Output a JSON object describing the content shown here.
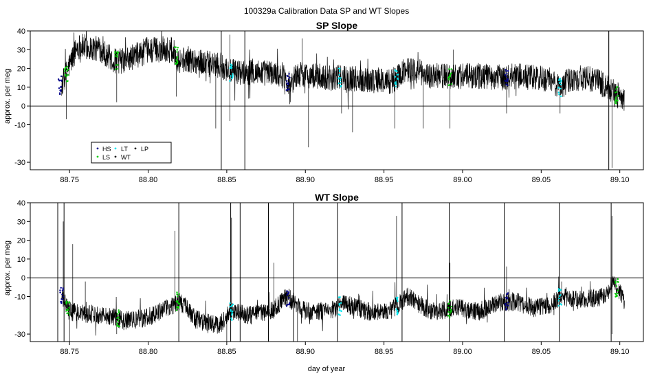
{
  "figure": {
    "title": "100329a   Calibration Data SP and WT Slopes",
    "xlabel": "day of year"
  },
  "colors": {
    "trace": "#000000",
    "HS": "#00008b",
    "LS": "#00cd00",
    "LT": "#00e5ee",
    "WT": "#000000",
    "LP": "#000000"
  },
  "chart_data": [
    {
      "type": "line",
      "title": "SP Slope",
      "ylabel": "approx. per meg",
      "xlim": [
        88.725,
        89.115
      ],
      "ylim": [
        -34,
        40
      ],
      "x_ticks": [
        88.75,
        88.8,
        88.85,
        88.9,
        88.95,
        89.0,
        89.05,
        89.1
      ],
      "x_tick_labels": [
        "88.75",
        "88.80",
        "88.85",
        "88.90",
        "88.95",
        "89.00",
        "89.05",
        "89.10"
      ],
      "y_ticks": [
        -30,
        -10,
        0,
        10,
        20,
        30,
        40
      ],
      "y_tick_labels": [
        "-30",
        "-10",
        "0",
        "10",
        "20",
        "30",
        "40"
      ],
      "reference_line": 0,
      "legend": {
        "position": "bottom-left",
        "entries": [
          {
            "label": "HS",
            "color": "#00008b"
          },
          {
            "label": "LT",
            "color": "#00e5ee"
          },
          {
            "label": "LP",
            "color": "#000000"
          },
          {
            "label": "LS",
            "color": "#00cd00"
          },
          {
            "label": "WT",
            "color": "#000000"
          }
        ]
      },
      "baseline": [
        [
          88.745,
          11
        ],
        [
          88.75,
          22
        ],
        [
          88.755,
          32
        ],
        [
          88.77,
          30
        ],
        [
          88.778,
          24
        ],
        [
          88.785,
          24
        ],
        [
          88.8,
          30
        ],
        [
          88.815,
          30
        ],
        [
          88.82,
          24
        ],
        [
          88.825,
          25
        ],
        [
          88.84,
          22
        ],
        [
          88.848,
          21
        ],
        [
          88.852,
          18
        ],
        [
          88.858,
          18
        ],
        [
          88.87,
          18
        ],
        [
          88.885,
          17
        ],
        [
          88.89,
          12
        ],
        [
          88.895,
          17
        ],
        [
          88.905,
          16
        ],
        [
          88.915,
          15
        ],
        [
          88.925,
          15
        ],
        [
          88.94,
          14
        ],
        [
          88.955,
          13
        ],
        [
          88.965,
          20
        ],
        [
          88.98,
          16
        ],
        [
          88.99,
          16
        ],
        [
          88.997,
          16
        ],
        [
          89.01,
          16
        ],
        [
          89.025,
          15
        ],
        [
          89.035,
          16
        ],
        [
          89.055,
          14
        ],
        [
          89.062,
          10
        ],
        [
          89.07,
          15
        ],
        [
          89.085,
          14
        ],
        [
          89.095,
          8
        ],
        [
          89.103,
          2
        ]
      ],
      "noise_amplitude": 7,
      "dips": [
        {
          "x": 88.748,
          "y": -7
        },
        {
          "x": 88.78,
          "y": 2
        },
        {
          "x": 88.818,
          "y": 5
        },
        {
          "x": 88.843,
          "y": -12
        },
        {
          "x": 88.852,
          "y": -8
        },
        {
          "x": 88.89,
          "y": 1
        },
        {
          "x": 88.902,
          "y": -22
        },
        {
          "x": 88.923,
          "y": -4
        },
        {
          "x": 88.93,
          "y": -14
        },
        {
          "x": 88.957,
          "y": -12
        },
        {
          "x": 88.975,
          "y": -12
        },
        {
          "x": 88.992,
          "y": -12
        },
        {
          "x": 89.028,
          "y": -4
        },
        {
          "x": 89.062,
          "y": -4
        },
        {
          "x": 89.095,
          "y": -33
        }
      ],
      "spikes": [
        {
          "x": 88.852,
          "y": 38
        },
        {
          "x": 88.898,
          "y": 36
        },
        {
          "x": 88.994,
          "y": 30
        },
        {
          "x": 89.093,
          "y": 40
        }
      ],
      "vertical_lines": [
        88.8465,
        88.8615,
        89.093
      ],
      "calibration_markers": [
        {
          "x": 88.744,
          "label": "HS"
        },
        {
          "x": 88.748,
          "label": "LS"
        },
        {
          "x": 88.78,
          "label": "LS"
        },
        {
          "x": 88.818,
          "label": "LS"
        },
        {
          "x": 88.853,
          "label": "LT"
        },
        {
          "x": 88.889,
          "label": "HS"
        },
        {
          "x": 88.922,
          "label": "LT"
        },
        {
          "x": 88.958,
          "label": "LT"
        },
        {
          "x": 88.992,
          "label": "LS"
        },
        {
          "x": 89.028,
          "label": "HS"
        },
        {
          "x": 89.062,
          "label": "LT"
        },
        {
          "x": 89.098,
          "label": "LS"
        }
      ]
    },
    {
      "type": "line",
      "title": "WT Slope",
      "ylabel": "approx. per meg",
      "xlim": [
        88.725,
        89.115
      ],
      "ylim": [
        -34,
        40
      ],
      "x_ticks": [
        88.75,
        88.8,
        88.85,
        88.9,
        88.95,
        89.0,
        89.05,
        89.1
      ],
      "x_tick_labels": [
        "88.75",
        "88.80",
        "88.85",
        "88.90",
        "88.95",
        "89.00",
        "89.05",
        "89.10"
      ],
      "y_ticks": [
        -30,
        -10,
        0,
        10,
        20,
        30,
        40
      ],
      "y_tick_labels": [
        "-30",
        "-10",
        "0",
        "10",
        "20",
        "30",
        "40"
      ],
      "reference_line": 0,
      "baseline": [
        [
          88.745,
          -10
        ],
        [
          88.75,
          -18
        ],
        [
          88.76,
          -19
        ],
        [
          88.775,
          -20
        ],
        [
          88.785,
          -23
        ],
        [
          88.8,
          -21
        ],
        [
          88.815,
          -15
        ],
        [
          88.82,
          -12
        ],
        [
          88.83,
          -22
        ],
        [
          88.845,
          -26
        ],
        [
          88.852,
          -18
        ],
        [
          88.865,
          -20
        ],
        [
          88.88,
          -17
        ],
        [
          88.888,
          -10
        ],
        [
          88.9,
          -18
        ],
        [
          88.915,
          -18
        ],
        [
          88.925,
          -14
        ],
        [
          88.94,
          -18
        ],
        [
          88.955,
          -17
        ],
        [
          88.965,
          -10
        ],
        [
          88.98,
          -18
        ],
        [
          88.99,
          -17
        ],
        [
          88.997,
          -16
        ],
        [
          89.01,
          -18
        ],
        [
          89.025,
          -13
        ],
        [
          89.035,
          -13
        ],
        [
          89.045,
          -16
        ],
        [
          89.055,
          -15
        ],
        [
          89.062,
          -10
        ],
        [
          89.075,
          -12
        ],
        [
          89.09,
          -10
        ],
        [
          89.096,
          -3
        ],
        [
          89.103,
          -12
        ]
      ],
      "noise_amplitude": 5,
      "dips": [
        {
          "x": 88.75,
          "y": -34
        },
        {
          "x": 88.78,
          "y": -30
        },
        {
          "x": 88.85,
          "y": -34
        },
        {
          "x": 88.895,
          "y": -34
        },
        {
          "x": 89.095,
          "y": -30
        }
      ],
      "spikes": [
        {
          "x": 88.746,
          "y": 30
        },
        {
          "x": 88.752,
          "y": 18
        },
        {
          "x": 88.76,
          "y": -2
        },
        {
          "x": 88.817,
          "y": 25
        },
        {
          "x": 88.853,
          "y": 32
        },
        {
          "x": 88.88,
          "y": 8
        },
        {
          "x": 88.958,
          "y": 33
        },
        {
          "x": 88.992,
          "y": 8
        },
        {
          "x": 89.028,
          "y": 6
        },
        {
          "x": 89.063,
          "y": -2
        },
        {
          "x": 89.095,
          "y": 33
        }
      ],
      "vertical_lines": [
        88.7425,
        88.7465,
        88.8195,
        88.8525,
        88.8585,
        88.8765,
        88.8925,
        88.9205,
        88.9615,
        88.9915,
        89.0265,
        89.0615,
        89.0945
      ],
      "calibration_markers": [
        {
          "x": 88.745,
          "label": "HS"
        },
        {
          "x": 88.749,
          "label": "LS"
        },
        {
          "x": 88.781,
          "label": "LS"
        },
        {
          "x": 88.819,
          "label": "LS"
        },
        {
          "x": 88.853,
          "label": "LT"
        },
        {
          "x": 88.889,
          "label": "HS"
        },
        {
          "x": 88.922,
          "label": "LT"
        },
        {
          "x": 88.958,
          "label": "LT"
        },
        {
          "x": 88.992,
          "label": "LS"
        },
        {
          "x": 89.028,
          "label": "HS"
        },
        {
          "x": 89.062,
          "label": "LT"
        },
        {
          "x": 89.098,
          "label": "LS"
        }
      ]
    }
  ]
}
